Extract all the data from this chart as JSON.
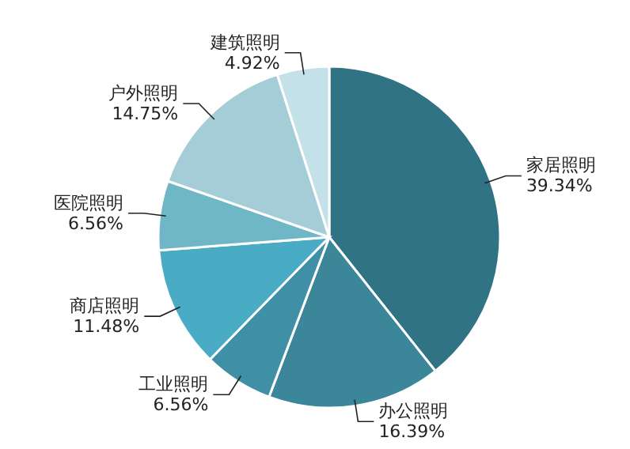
{
  "chart_data": {
    "type": "pie",
    "categories": [
      "家居照明",
      "办公照明",
      "工业照明",
      "商店照明",
      "医院照明",
      "户外照明",
      "建筑照明"
    ],
    "values": [
      39.34,
      16.39,
      6.56,
      11.48,
      6.56,
      14.75,
      4.92
    ],
    "value_labels": [
      "39.34%",
      "16.39%",
      "6.56%",
      "11.48%",
      "6.56%",
      "14.75%",
      "4.92%"
    ],
    "colors": [
      "#2f7384",
      "#3b8799",
      "#3f90a6",
      "#49abc4",
      "#6fb6c6",
      "#a4cdd7",
      "#c4e0e8"
    ]
  }
}
